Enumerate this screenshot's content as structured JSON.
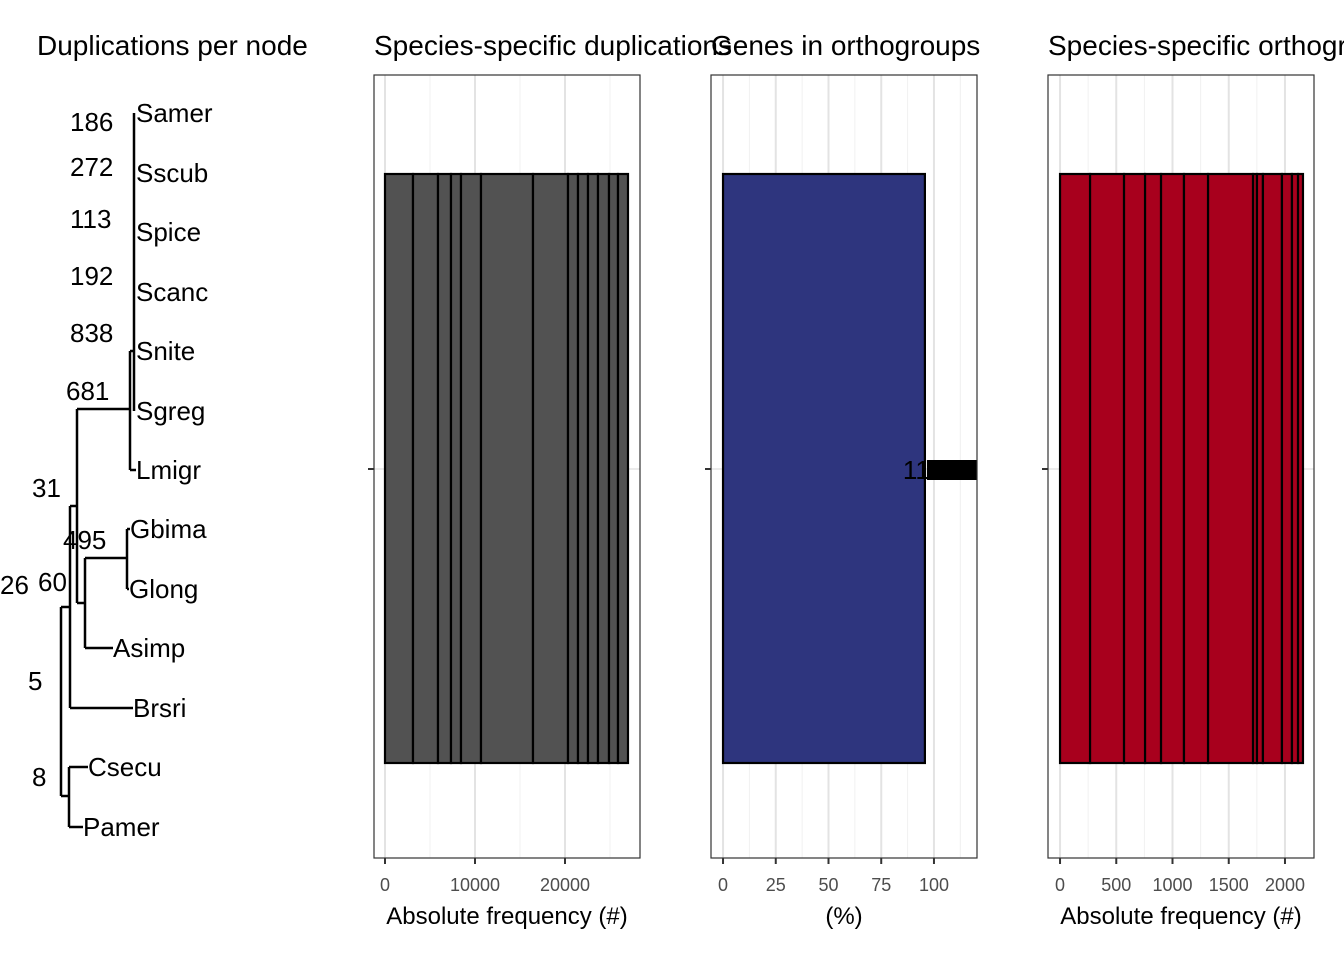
{
  "titles": [
    "Duplications per node",
    "Species-specific duplications",
    "Genes in orthogroups",
    "Species-specific orthogroups"
  ],
  "tree": {
    "tips": [
      "Samer",
      "Sscub",
      "Spice",
      "Scanc",
      "Snite",
      "Sgreg",
      "Lmigr",
      "Gbima",
      "Glong",
      "Asimp",
      "Brsri",
      "Csecu",
      "Pamer"
    ],
    "node_labels": [
      "186",
      "272",
      "113",
      "192",
      "838",
      "681",
      "31",
      "495",
      "26",
      "60",
      "5",
      "8"
    ]
  },
  "chart_data": [
    {
      "type": "bar",
      "stacked": true,
      "orientation": "horizontal",
      "title": "Species-specific duplications",
      "xlabel": "Absolute frequency (#)",
      "xlim": [
        -1222,
        28333
      ],
      "xticks": [
        0,
        10000,
        20000
      ],
      "xtick_labels": [
        "0",
        "10000",
        "20000"
      ],
      "minor_ticks": [
        5000,
        15000,
        25000
      ],
      "grid": true,
      "color": "#525252",
      "values": [
        3111,
        2778,
        1444,
        1111,
        2222,
        5778,
        3889,
        1111,
        1111,
        1111,
        1222,
        1000,
        1111
      ]
    },
    {
      "type": "bar",
      "orientation": "horizontal",
      "title": "Genes in orthogroups",
      "xlabel": "(%)",
      "xlim": [
        -5.7,
        120.4
      ],
      "xticks": [
        0,
        25,
        50,
        75,
        100
      ],
      "xtick_labels": [
        "0",
        "25",
        "50",
        "75",
        "100"
      ],
      "minor_ticks": [
        12.5,
        37.5,
        62.5,
        87.5,
        112.5
      ],
      "grid": true,
      "color": "#2e357e",
      "values": [
        95.7
      ],
      "data_label": "11"
    },
    {
      "type": "bar",
      "stacked": true,
      "orientation": "horizontal",
      "title": "Species-specific orthogroups",
      "xlabel": "Absolute frequency (#)",
      "xlim": [
        -107,
        2258
      ],
      "xticks": [
        0,
        500,
        1000,
        1500,
        2000
      ],
      "xtick_labels": [
        "0",
        "500",
        "1000",
        "1500",
        "2000"
      ],
      "minor_ticks": [
        250,
        750,
        1250,
        1750
      ],
      "grid": true,
      "color": "#a8001d",
      "values": [
        267,
        302,
        187,
        142,
        204,
        214,
        400,
        35,
        53,
        169,
        89,
        54,
        44
      ]
    }
  ]
}
